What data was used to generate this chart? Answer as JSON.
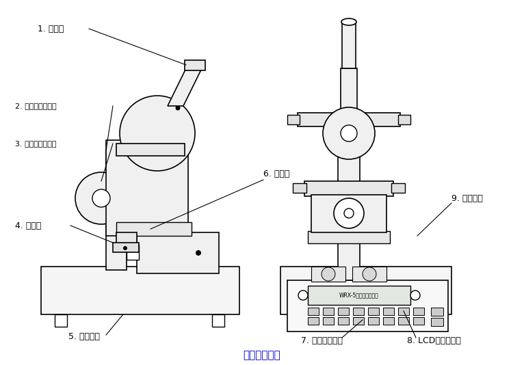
{
  "title": "仪器整体视图",
  "title_color": "#0000cc",
  "title_fontsize": 11,
  "bg_color": "#ffffff",
  "line_color": "#000000",
  "label_fontsize": 9,
  "labels": {
    "1": "1. 目镜筒",
    "2": "2. 显微镜调焦旋钮",
    "3": "3. 显微镜锁紧旋钮",
    "4": "4. 物镜筒",
    "5": "5. 电热炉座",
    "6": "6. 载玻片",
    "7": "7. 仪器操作面板",
    "8": "8. LCD液晶显示屏",
    "9": "9. 冷却风扇"
  }
}
